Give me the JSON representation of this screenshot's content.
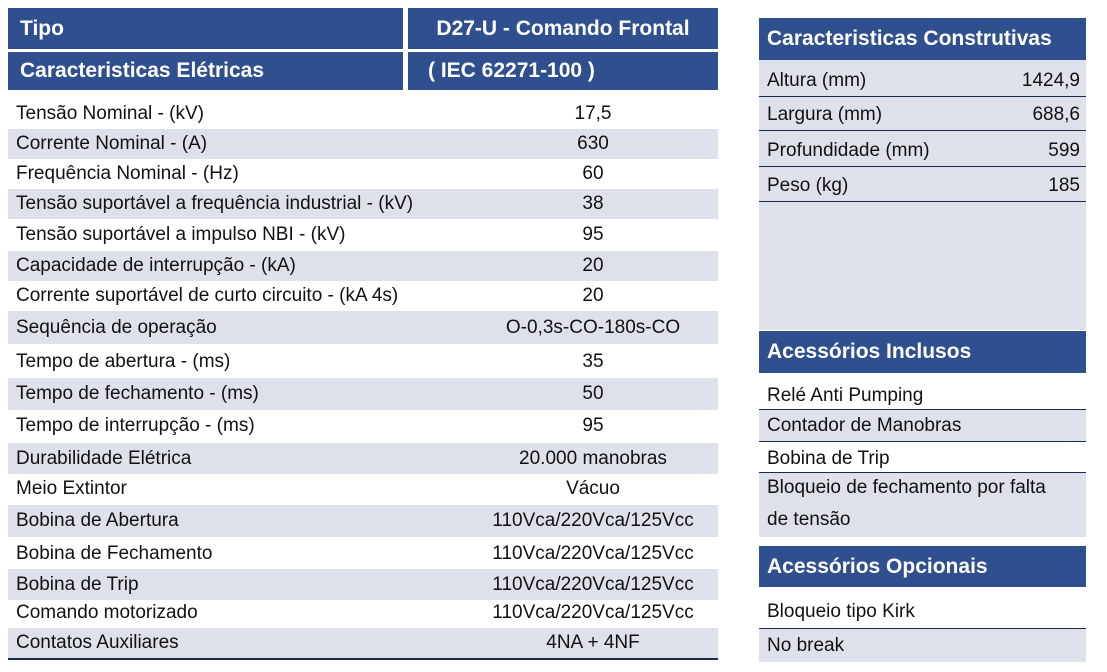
{
  "left": {
    "header": {
      "tipo_label": "Tipo",
      "tipo_value": "D27-U - Comando Frontal",
      "section_label": "Caracteristicas Elétricas",
      "section_value": "( IEC 62271-100 )"
    },
    "rows": [
      {
        "label": "Tensão Nominal - (kV)",
        "value": "17,5"
      },
      {
        "label": "Corrente Nominal - (A)",
        "value": "630"
      },
      {
        "label": "Frequência Nominal - (Hz)",
        "value": "60"
      },
      {
        "label": "Tensão suportável a frequência industrial - (kV)",
        "value": "38"
      },
      {
        "label": "Tensão suportável a impulso NBI - (kV)",
        "value": "95"
      },
      {
        "label": "Capacidade de interrupção - (kA)",
        "value": "20"
      },
      {
        "label": "Corrente suportável de curto circuito - (kA 4s)",
        "value": "20"
      },
      {
        "label": "Sequência de operação",
        "value": "O-0,3s-CO-180s-CO"
      },
      {
        "label": "Tempo de abertura - (ms)",
        "value": "35"
      },
      {
        "label": "Tempo de fechamento - (ms)",
        "value": "50"
      },
      {
        "label": "Tempo de interrupção - (ms)",
        "value": "95"
      },
      {
        "label": "Durabilidade Elétrica",
        "value": "20.000 manobras"
      },
      {
        "label": "Meio Extintor",
        "value": "Vácuo"
      },
      {
        "label": "Bobina de Abertura",
        "value": "110Vca/220Vca/125Vcc"
      },
      {
        "label": "Bobina de Fechamento",
        "value": "110Vca/220Vca/125Vcc"
      },
      {
        "label": "Bobina de Trip",
        "value": "110Vca/220Vca/125Vcc"
      },
      {
        "label": "Comando motorizado",
        "value": "110Vca/220Vca/125Vcc"
      },
      {
        "label": "Contatos Auxiliares",
        "value": "4NA + 4NF"
      }
    ]
  },
  "construtivas": {
    "title": "Caracteristicas  Construtivas",
    "rows": [
      {
        "label": "Altura (mm)",
        "value": "1424,9"
      },
      {
        "label": "Largura (mm)",
        "value": "688,6"
      },
      {
        "label": "Profundidade (mm)",
        "value": "599"
      },
      {
        "label": "Peso (kg)",
        "value": "185"
      }
    ]
  },
  "inclusos": {
    "title": "Acessórios Inclusos",
    "items": [
      "Relé Anti Pumping",
      "Contador de Manobras",
      "Bobina de Trip",
      "Bloqueio de fechamento por falta",
      "de tensão"
    ]
  },
  "opcionais": {
    "title": "Acessórios Opcionais",
    "items": [
      "Bloqueio tipo Kirk",
      "No break"
    ]
  }
}
